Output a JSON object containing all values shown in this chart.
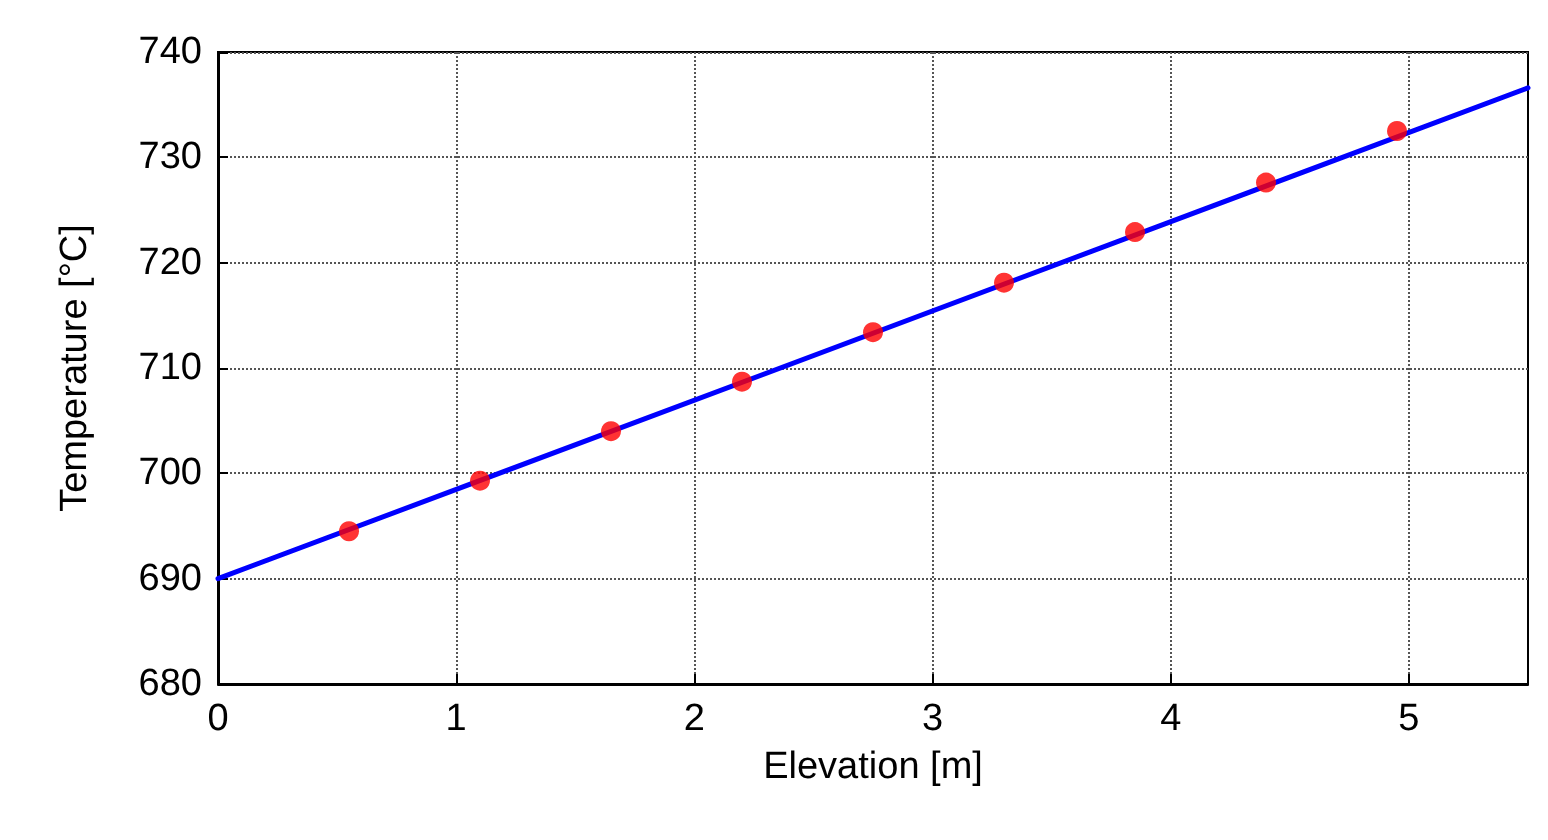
{
  "chart_data": {
    "type": "line",
    "xlabel": "Elevation [m]",
    "ylabel": "Temperature [°C]",
    "xlim": [
      0,
      5.5
    ],
    "xticks": [
      0,
      1,
      2,
      3,
      4,
      5
    ],
    "ylim": [
      680,
      740
    ],
    "yticks": [
      680,
      690,
      700,
      710,
      720,
      730,
      740
    ],
    "grid": true,
    "series": [
      {
        "color": "#0000ff",
        "marker": "none",
        "x": [
          0,
          5.5
        ],
        "values": [
          690,
          736.6
        ]
      },
      {
        "type": "scatter",
        "color": "#ff0000",
        "marker": "circle",
        "x": [
          0.55,
          1.1,
          1.65,
          2.2,
          2.75,
          3.3,
          3.85,
          4.4,
          4.95
        ],
        "values": [
          694.5,
          699.3,
          704,
          708.7,
          713.4,
          718.1,
          722.9,
          727.6,
          732.5
        ]
      }
    ]
  }
}
